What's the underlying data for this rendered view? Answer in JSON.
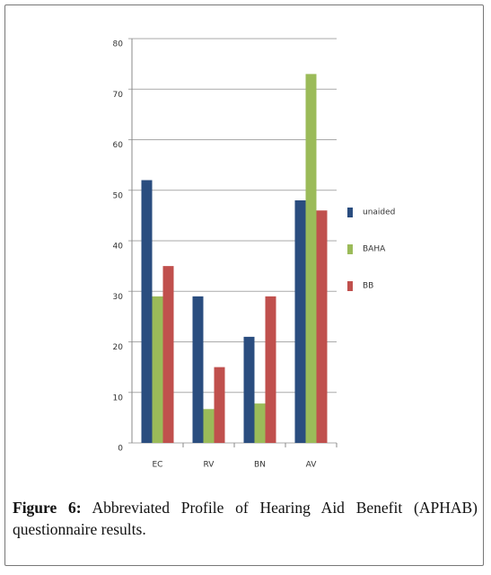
{
  "chart_data": {
    "type": "bar",
    "categories": [
      "EC",
      "RV",
      "BN",
      "AV"
    ],
    "series": [
      {
        "name": "unaided",
        "color": "#2a4d7f",
        "values": [
          52,
          29,
          21,
          48
        ]
      },
      {
        "name": "BAHA",
        "color": "#9bbb59",
        "values": [
          29,
          6.7,
          7.8,
          73
        ]
      },
      {
        "name": "BB",
        "color": "#c0504d",
        "values": [
          35,
          15,
          29,
          46
        ]
      }
    ],
    "ylim": [
      0,
      80
    ],
    "yticks": [
      0,
      10,
      20,
      30,
      40,
      50,
      60,
      70,
      80
    ],
    "grid": true,
    "legend": "right"
  },
  "caption": {
    "label": "Figure 6:",
    "text": "Abbreviated Profile of Hearing Aid Benefit (APHAB) questionnaire results."
  }
}
